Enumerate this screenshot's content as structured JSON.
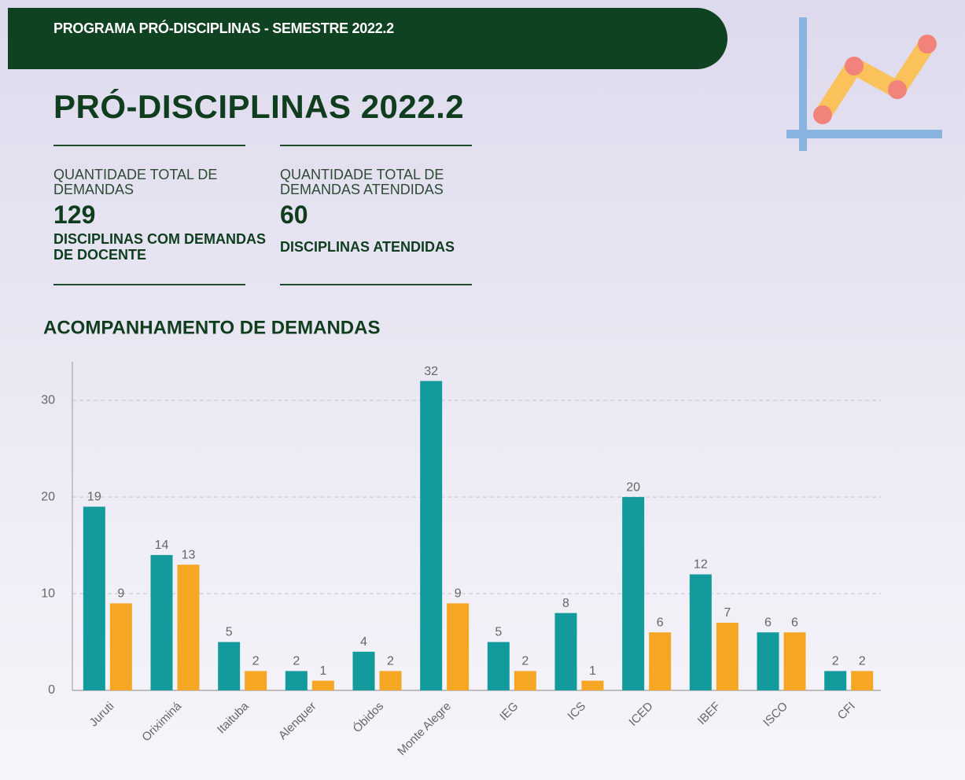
{
  "header": {
    "title": "PROGRAMA PRÓ-DISCIPLINAS - SEMESTRE 2022.2"
  },
  "title": "PRÓ-DISCIPLINAS 2022.2",
  "kpis": [
    {
      "label": "QUANTIDADE TOTAL DE DEMANDAS",
      "value": 129,
      "caption": "DISCIPLINAS COM DEMANDAS DE DOCENTE"
    },
    {
      "label": "QUANTIDADE TOTAL DE DEMANDAS ATENDIDAS",
      "value": 60,
      "caption": "DISCIPLINAS ATENDIDAS"
    }
  ],
  "chart_data": {
    "type": "bar",
    "title": "ACOMPANHAMENTO DE DEMANDAS",
    "categories": [
      "Juruti",
      "Oriximiná",
      "Itaituba",
      "Alenquer",
      "Óbidos",
      "Monte Alegre",
      "IEG",
      "ICS",
      "ICED",
      "IBEF",
      "ISCO",
      "CFI"
    ],
    "series": [
      {
        "color": "#139a9c",
        "values": [
          19,
          14,
          5,
          2,
          4,
          32,
          5,
          8,
          20,
          12,
          6,
          2
        ]
      },
      {
        "color": "#f5a623",
        "values": [
          9,
          13,
          2,
          1,
          2,
          9,
          2,
          1,
          6,
          7,
          6,
          2
        ]
      }
    ],
    "ylim": [
      0,
      34
    ],
    "yticks": [
      0,
      10,
      20,
      30
    ],
    "grid": true
  }
}
